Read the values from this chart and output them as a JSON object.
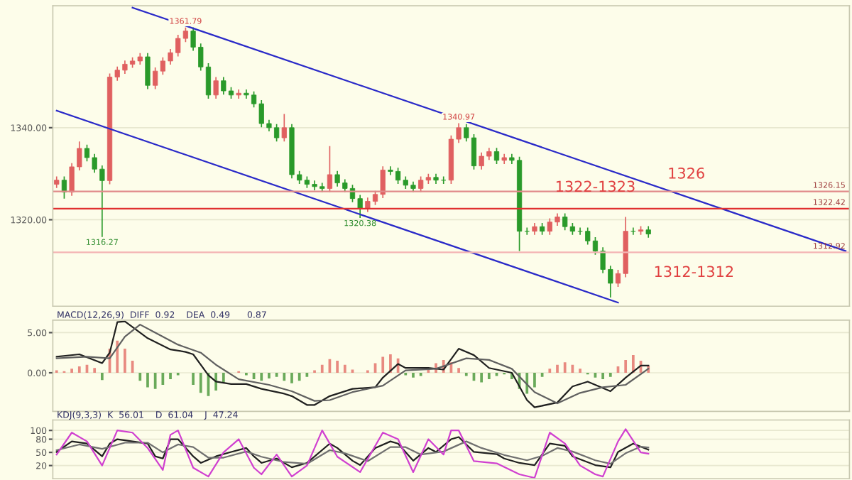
{
  "chart_data": [
    {
      "type": "candlestick",
      "categories": [
        null,
        null,
        null,
        null,
        null,
        null,
        null,
        null,
        null,
        null,
        null,
        null,
        null,
        null,
        null,
        null,
        null,
        null,
        null,
        null,
        null,
        null,
        null,
        null,
        null,
        null,
        null,
        null,
        null,
        null,
        null,
        null,
        null,
        null,
        null,
        null,
        null,
        null,
        null,
        null,
        null,
        null,
        null,
        null,
        null,
        null,
        null,
        null,
        null,
        null,
        null,
        null,
        null,
        null,
        null,
        null,
        null,
        null,
        null,
        null,
        null,
        null,
        null,
        null,
        null,
        null,
        null,
        null,
        null,
        null,
        null,
        null,
        null,
        null,
        null,
        null,
        null,
        null,
        null,
        null,
        null,
        null,
        null,
        null,
        null,
        null,
        null,
        null,
        null,
        null,
        null,
        null,
        null,
        null,
        null,
        null,
        null,
        null,
        null,
        null,
        null,
        null,
        null,
        null,
        null
      ],
      "ohlc": [
        [
          1327.7,
          1329.4,
          1326.9,
          1328.6
        ],
        [
          1328.6,
          1329.4,
          1324.6,
          1326.0
        ],
        [
          1326.0,
          1332.3,
          1325.2,
          1331.5
        ],
        [
          1331.5,
          1337.0,
          1330.7,
          1335.5
        ],
        [
          1335.5,
          1336.3,
          1332.7,
          1333.5
        ],
        [
          1333.5,
          1334.3,
          1330.2,
          1331.0
        ],
        [
          1331.0,
          1331.8,
          1316.27,
          1328.5
        ],
        [
          1328.5,
          1351.8,
          1327.7,
          1351.0
        ],
        [
          1351.0,
          1353.3,
          1350.2,
          1352.5
        ],
        [
          1352.5,
          1354.6,
          1351.7,
          1353.8
        ],
        [
          1353.8,
          1355.3,
          1353.0,
          1354.5
        ],
        [
          1354.5,
          1356.2,
          1353.7,
          1355.4
        ],
        [
          1355.4,
          1356.2,
          1348.4,
          1349.2
        ],
        [
          1349.2,
          1353.1,
          1348.4,
          1352.3
        ],
        [
          1352.3,
          1355.3,
          1351.5,
          1354.5
        ],
        [
          1354.5,
          1357.1,
          1353.7,
          1356.3
        ],
        [
          1356.3,
          1360.2,
          1355.5,
          1359.4
        ],
        [
          1359.4,
          1361.79,
          1358.6,
          1361.0
        ],
        [
          1361.0,
          1361.8,
          1356.7,
          1357.5
        ],
        [
          1357.5,
          1358.3,
          1352.4,
          1353.2
        ],
        [
          1353.2,
          1354.0,
          1346.3,
          1347.1
        ],
        [
          1347.1,
          1351.0,
          1346.3,
          1350.2
        ],
        [
          1350.2,
          1351.0,
          1347.2,
          1348.0
        ],
        [
          1348.0,
          1348.8,
          1346.3,
          1347.1
        ],
        [
          1347.1,
          1348.3,
          1346.3,
          1347.5
        ],
        [
          1347.5,
          1348.3,
          1346.3,
          1347.1
        ],
        [
          1347.1,
          1347.9,
          1344.4,
          1345.2
        ],
        [
          1345.2,
          1346.0,
          1340.1,
          1340.9
        ],
        [
          1340.9,
          1341.7,
          1339.2,
          1340.0
        ],
        [
          1340.0,
          1340.8,
          1337.0,
          1337.8
        ],
        [
          1337.8,
          1343.0,
          1337.0,
          1340.0
        ],
        [
          1340.0,
          1340.8,
          1329.0,
          1329.8
        ],
        [
          1329.8,
          1330.6,
          1327.8,
          1328.6
        ],
        [
          1328.6,
          1329.4,
          1326.9,
          1327.7
        ],
        [
          1327.7,
          1328.5,
          1326.4,
          1327.2
        ],
        [
          1327.2,
          1328.0,
          1326.0,
          1326.8
        ],
        [
          1326.8,
          1336.0,
          1326.0,
          1329.8
        ],
        [
          1329.8,
          1330.6,
          1327.2,
          1328.0
        ],
        [
          1328.0,
          1328.8,
          1326.0,
          1326.8
        ],
        [
          1326.8,
          1327.6,
          1323.8,
          1324.6
        ],
        [
          1324.6,
          1325.4,
          1320.38,
          1322.5
        ],
        [
          1322.5,
          1324.8,
          1321.7,
          1324.0
        ],
        [
          1324.0,
          1326.3,
          1323.2,
          1325.5
        ],
        [
          1325.5,
          1331.6,
          1324.7,
          1330.8
        ],
        [
          1330.8,
          1331.6,
          1329.7,
          1330.5
        ],
        [
          1330.5,
          1331.3,
          1327.8,
          1328.6
        ],
        [
          1328.6,
          1329.4,
          1326.7,
          1327.5
        ],
        [
          1327.5,
          1328.3,
          1326.0,
          1326.8
        ],
        [
          1326.8,
          1329.4,
          1326.0,
          1328.6
        ],
        [
          1328.6,
          1330.0,
          1327.8,
          1329.2
        ],
        [
          1329.2,
          1330.0,
          1327.8,
          1328.6
        ],
        [
          1328.6,
          1329.4,
          1327.8,
          1328.6
        ],
        [
          1328.6,
          1338.3,
          1327.8,
          1337.5
        ],
        [
          1337.5,
          1340.97,
          1336.7,
          1340.0
        ],
        [
          1340.0,
          1340.8,
          1337.0,
          1337.8
        ],
        [
          1337.8,
          1338.6,
          1330.9,
          1331.7
        ],
        [
          1331.7,
          1334.6,
          1330.9,
          1333.8
        ],
        [
          1333.8,
          1335.6,
          1333.0,
          1334.8
        ],
        [
          1334.8,
          1335.6,
          1332.1,
          1332.9
        ],
        [
          1332.9,
          1334.3,
          1332.1,
          1333.5
        ],
        [
          1333.5,
          1334.3,
          1332.1,
          1332.9
        ],
        [
          1332.9,
          1333.7,
          1313.2,
          1317.5
        ],
        [
          1317.5,
          1318.3,
          1316.7,
          1317.5
        ],
        [
          1317.5,
          1319.3,
          1316.7,
          1318.5
        ],
        [
          1318.5,
          1319.3,
          1316.7,
          1317.5
        ],
        [
          1317.5,
          1320.3,
          1316.7,
          1319.5
        ],
        [
          1319.5,
          1321.4,
          1318.7,
          1320.6
        ],
        [
          1320.6,
          1321.4,
          1317.7,
          1318.5
        ],
        [
          1318.5,
          1319.3,
          1316.7,
          1317.5
        ],
        [
          1317.5,
          1318.3,
          1316.7,
          1317.5
        ],
        [
          1317.5,
          1318.3,
          1314.6,
          1315.4
        ],
        [
          1315.4,
          1316.2,
          1312.4,
          1313.2
        ],
        [
          1313.2,
          1314.0,
          1308.4,
          1309.2
        ],
        [
          1309.2,
          1310.0,
          1303.1,
          1306.2
        ],
        [
          1306.2,
          1309.1,
          1305.4,
          1308.3
        ],
        [
          1308.3,
          1320.6,
          1307.5,
          1317.5
        ],
        [
          1317.5,
          1318.3,
          1316.7,
          1317.5
        ],
        [
          1317.5,
          1318.6,
          1316.7,
          1317.8
        ],
        [
          1317.8,
          1318.6,
          1316.1,
          1316.9
        ],
        null,
        null,
        null,
        null,
        null,
        null,
        null,
        null,
        null,
        null,
        null,
        null,
        null,
        null,
        null,
        null,
        null,
        null,
        null,
        null,
        null,
        null,
        null,
        null,
        null,
        null
      ],
      "colors": [
        "#e06060",
        "#2a9a2a",
        "#e06060",
        "#e06060",
        "#2a9a2a",
        "#2a9a2a",
        "#2a9a2a",
        "#e06060",
        "#e06060",
        "#e06060",
        "#e06060",
        "#e06060",
        "#2a9a2a",
        "#e06060",
        "#e06060",
        "#e06060",
        "#e06060",
        "#e06060",
        "#2a9a2a",
        "#2a9a2a",
        "#2a9a2a",
        "#e06060",
        "#2a9a2a",
        "#2a9a2a",
        "#e06060",
        "#2a9a2a",
        "#2a9a2a",
        "#2a9a2a",
        "#2a9a2a",
        "#2a9a2a",
        "#e06060",
        "#2a9a2a",
        "#2a9a2a",
        "#2a9a2a",
        "#2a9a2a",
        "#2a9a2a",
        "#e06060",
        "#2a9a2a",
        "#2a9a2a",
        "#2a9a2a",
        "#2a9a2a",
        "#e06060",
        "#e06060",
        "#e06060",
        "#2a9a2a",
        "#2a9a2a",
        "#2a9a2a",
        "#2a9a2a",
        "#e06060",
        "#e06060",
        "#2a9a2a",
        "#2a9a2a",
        "#e06060",
        "#e06060",
        "#2a9a2a",
        "#2a9a2a",
        "#e06060",
        "#e06060",
        "#2a9a2a",
        "#e06060",
        "#2a9a2a",
        "#2a9a2a",
        "#2a9a2a",
        "#e06060",
        "#2a9a2a",
        "#e06060",
        "#e06060",
        "#2a9a2a",
        "#2a9a2a",
        "#2a9a2a",
        "#2a9a2a",
        "#2a9a2a",
        "#2a9a2a",
        "#2a9a2a",
        "#e06060",
        "#e06060",
        "#2a9a2a",
        "#e06060",
        "#2a9a2a",
        null,
        null,
        null,
        null,
        null,
        null,
        null,
        null,
        null,
        null,
        null,
        null,
        null,
        null,
        null,
        null,
        null,
        null,
        null,
        null,
        null,
        null,
        null,
        null,
        null,
        null
      ],
      "series": [
        {
          "type": "line",
          "color": "#2a2ac8",
          "values": [
            null,
            null,
            null,
            null,
            null,
            null,
            null,
            null,
            null,
            null,
            1366.1,
            null,
            null,
            null,
            null,
            null,
            null,
            null,
            null,
            null,
            null,
            null,
            null,
            null,
            null,
            null,
            null,
            null,
            null,
            null,
            null,
            null,
            null,
            null,
            null,
            null,
            null,
            null,
            null,
            null,
            null,
            null,
            null,
            null,
            null,
            null,
            null,
            null,
            null,
            null,
            null,
            null,
            null,
            null,
            null,
            null,
            null,
            null,
            null,
            null,
            null,
            null,
            null,
            null,
            null,
            null,
            null,
            null,
            null,
            null,
            null,
            null,
            null,
            null,
            null,
            null,
            null,
            null,
            null,
            null,
            null,
            null,
            null,
            null,
            null,
            null,
            null,
            null,
            null,
            null,
            null,
            null,
            null,
            null,
            null,
            null,
            null,
            null,
            null,
            null,
            null,
            null,
            null,
            null,
            1313.2
          ]
        },
        {
          "type": "line",
          "color": "#2a2ac8",
          "values": [
            1343.7,
            null,
            null,
            null,
            null,
            null,
            null,
            null,
            null,
            null,
            null,
            null,
            null,
            null,
            null,
            null,
            null,
            null,
            null,
            null,
            null,
            null,
            null,
            null,
            null,
            null,
            null,
            null,
            null,
            null,
            null,
            null,
            null,
            null,
            null,
            null,
            null,
            null,
            null,
            null,
            null,
            null,
            null,
            null,
            null,
            null,
            null,
            null,
            null,
            null,
            null,
            null,
            null,
            null,
            null,
            null,
            null,
            null,
            null,
            null,
            null,
            null,
            null,
            null,
            null,
            null,
            null,
            null,
            null,
            null,
            null,
            null,
            null,
            null,
            1302.0,
            null,
            null,
            null,
            null,
            null,
            null,
            null,
            null,
            null,
            null,
            null,
            null,
            null,
            null,
            null,
            null,
            null,
            null,
            null,
            null,
            null,
            null,
            null,
            null,
            null,
            null,
            null,
            null,
            null,
            null
          ]
        }
      ],
      "ylim": [
        1301.2,
        1366.5
      ],
      "yticks": [
        {
          "value": 1320,
          "label": "1320.00"
        },
        {
          "value": 1340,
          "label": "1340.00"
        }
      ],
      "grid": "y",
      "tick_labels": "y",
      "ref_lines": [
        {
          "axis": "y",
          "value": 1326.15,
          "label": "1326.15",
          "color": "#e08a8a"
        },
        {
          "axis": "y",
          "value": 1322.42,
          "label": "1322.42",
          "color": "#e03030"
        },
        {
          "axis": "y",
          "value": 1312.92,
          "label": "1312.92",
          "color": "#f4b4b4"
        }
      ],
      "annotations": [
        {
          "text": "1361.79",
          "y": 1361.79
        },
        {
          "text": "1316.27",
          "y": 1316.27
        },
        {
          "text": "1320.38",
          "y": 1320.38
        },
        {
          "text": "1340.97",
          "y": 1340.97
        },
        {
          "text": "1326",
          "y": 1326.15
        },
        {
          "text": "1322-1323",
          "y": 1322.42
        },
        {
          "text": "1312-1312",
          "y": 1312.92
        }
      ]
    },
    {
      "type": "bar",
      "title": "MACD(12,26,9)  DIFF  0.92    DEA  0.49      0.87",
      "categories": [
        null,
        null,
        null,
        null,
        null,
        null,
        null,
        null,
        null,
        null,
        null,
        null,
        null,
        null,
        null,
        null,
        null,
        null,
        null,
        null,
        null,
        null,
        null,
        null,
        null,
        null,
        null,
        null,
        null,
        null,
        null,
        null,
        null,
        null,
        null,
        null,
        null,
        null,
        null,
        null,
        null,
        null,
        null,
        null,
        null,
        null,
        null,
        null,
        null,
        null,
        null,
        null,
        null,
        null,
        null,
        null,
        null,
        null,
        null,
        null,
        null,
        null,
        null,
        null,
        null,
        null,
        null,
        null,
        null,
        null,
        null,
        null,
        null,
        null,
        null,
        null,
        null,
        null,
        null,
        null,
        null,
        null,
        null,
        null,
        null,
        null,
        null,
        null,
        null,
        null,
        null,
        null,
        null,
        null,
        null,
        null,
        null,
        null,
        null,
        null,
        null,
        null,
        null,
        null,
        null
      ],
      "values": [
        0.3,
        0.2,
        0.5,
        0.8,
        1.0,
        0.6,
        -0.9,
        3.0,
        4.0,
        3.0,
        1.5,
        -1.0,
        -1.8,
        -2.0,
        -1.5,
        -0.8,
        -0.3,
        null,
        -1.5,
        -2.5,
        -2.9,
        -2.2,
        -1.2,
        null,
        0.2,
        -0.3,
        -0.8,
        -1.0,
        -0.7,
        -0.5,
        -1.0,
        -1.3,
        -1.0,
        -0.5,
        0.3,
        1.0,
        1.7,
        1.5,
        1.0,
        0.4,
        null,
        0.3,
        1.2,
        2.0,
        2.3,
        1.8,
        -0.3,
        -0.6,
        -0.4,
        0.5,
        1.2,
        1.6,
        1.3,
        0.6,
        -0.4,
        -1.0,
        -1.2,
        -0.8,
        -0.4,
        -0.2,
        -0.8,
        -2.0,
        -2.6,
        -1.8,
        -0.5,
        0.5,
        1.0,
        1.3,
        1.0,
        0.5,
        -0.2,
        -0.6,
        -0.8,
        -0.5,
        0.8,
        1.6,
        2.2,
        1.5,
        0.9,
        null,
        null,
        null,
        null,
        null,
        null,
        null,
        null,
        null,
        null,
        null,
        null,
        null,
        null,
        null,
        null,
        null,
        null,
        null,
        null,
        null,
        null,
        null,
        null,
        null,
        null
      ],
      "colors": [
        "#e88a80",
        "#e88a80",
        "#e88a80",
        "#e88a80",
        "#e88a80",
        "#e88a80",
        "#6aaa5a",
        "#e88a80",
        "#e88a80",
        "#e88a80",
        "#e88a80",
        "#6aaa5a",
        "#6aaa5a",
        "#6aaa5a",
        "#6aaa5a",
        "#6aaa5a",
        "#6aaa5a",
        "#e88a80",
        "#6aaa5a",
        "#6aaa5a",
        "#6aaa5a",
        "#6aaa5a",
        "#6aaa5a",
        "#6aaa5a",
        "#e88a80",
        "#6aaa5a",
        "#6aaa5a",
        "#6aaa5a",
        "#6aaa5a",
        "#6aaa5a",
        "#6aaa5a",
        "#6aaa5a",
        "#6aaa5a",
        "#6aaa5a",
        "#e88a80",
        "#e88a80",
        "#e88a80",
        "#e88a80",
        "#e88a80",
        "#e88a80",
        "#e88a80",
        "#e88a80",
        "#e88a80",
        "#e88a80",
        "#e88a80",
        "#e88a80",
        "#6aaa5a",
        "#6aaa5a",
        "#6aaa5a",
        "#e88a80",
        "#e88a80",
        "#e88a80",
        "#e88a80",
        "#e88a80",
        "#6aaa5a",
        "#6aaa5a",
        "#6aaa5a",
        "#6aaa5a",
        "#6aaa5a",
        "#6aaa5a",
        "#6aaa5a",
        "#6aaa5a",
        "#6aaa5a",
        "#6aaa5a",
        "#6aaa5a",
        "#e88a80",
        "#e88a80",
        "#e88a80",
        "#e88a80",
        "#e88a80",
        "#6aaa5a",
        "#6aaa5a",
        "#6aaa5a",
        "#6aaa5a",
        "#e88a80",
        "#e88a80",
        "#e88a80",
        "#e88a80",
        "#e88a80",
        null,
        null,
        null,
        null,
        null,
        null,
        null,
        null,
        null,
        null,
        null,
        null,
        null,
        null,
        null,
        null,
        null,
        null,
        null,
        null,
        null,
        null,
        null,
        null,
        null,
        null
      ],
      "series": [
        {
          "type": "line",
          "color": "#202020",
          "values": [
            2.0,
            null,
            null,
            2.3,
            null,
            null,
            1.2,
            2.5,
            6.3,
            6.4,
            null,
            null,
            4.3,
            null,
            null,
            2.9,
            null,
            2.6,
            2.3,
            null,
            -0.3,
            -1.1,
            null,
            -1.4,
            null,
            -1.4,
            null,
            -2.0,
            null,
            null,
            -2.6,
            -2.9,
            null,
            -4.0,
            -4.0,
            null,
            -2.9,
            null,
            null,
            -2.0,
            null,
            null,
            -1.8,
            -0.6,
            null,
            1.1,
            0.6,
            null,
            null,
            0.6,
            null,
            0.4,
            null,
            3.0,
            null,
            2.2,
            null,
            0.6,
            null,
            null,
            0,
            null,
            -3.4,
            -4.3,
            null,
            null,
            -3.7,
            null,
            -1.7,
            null,
            -1.1,
            null,
            null,
            -2.3,
            null,
            -0.6,
            null,
            0.9,
            0.9,
            null,
            null,
            null,
            null,
            null,
            null,
            null,
            null,
            null,
            null,
            null,
            null,
            null,
            null,
            null,
            null,
            null,
            null,
            null,
            null,
            null,
            null,
            null,
            null,
            null,
            null
          ]
        },
        {
          "type": "line",
          "color": "#606060",
          "values": [
            1.8,
            null,
            null,
            null,
            2.0,
            null,
            null,
            1.8,
            null,
            4.5,
            null,
            6.0,
            null,
            5.0,
            null,
            null,
            3.5,
            null,
            null,
            2.5,
            null,
            1.0,
            null,
            null,
            -0.8,
            null,
            null,
            null,
            -1.5,
            null,
            null,
            -2.3,
            null,
            null,
            -3.5,
            null,
            -3.4,
            null,
            null,
            -2.4,
            null,
            null,
            null,
            -1.6,
            null,
            null,
            0.3,
            null,
            null,
            null,
            0.5,
            null,
            null,
            null,
            1.8,
            null,
            null,
            1.6,
            null,
            null,
            0.5,
            null,
            null,
            -2.4,
            null,
            null,
            -3.8,
            null,
            null,
            -2.5,
            null,
            null,
            -1.8,
            null,
            null,
            -1.5,
            null,
            null,
            0.5,
            null,
            null,
            null,
            null,
            null,
            null,
            null,
            null,
            null,
            null,
            null,
            null,
            null,
            null,
            null,
            null,
            null,
            null,
            null,
            null,
            null,
            null,
            null,
            null,
            null,
            null
          ]
        }
      ],
      "ylim": [
        -4.8,
        6.55
      ],
      "yticks": [
        {
          "value": 0,
          "label": "0.00"
        },
        {
          "value": 5,
          "label": "5.00"
        }
      ],
      "grid": "y",
      "tick_labels": "y"
    },
    {
      "type": "line",
      "title": "KDJ(9,3,3)  K  56.01    D  61.04    J  47.24",
      "categories": [
        null,
        null,
        null,
        null,
        null,
        null,
        null,
        null,
        null,
        null,
        null,
        null,
        null,
        null,
        null,
        null,
        null,
        null,
        null,
        null,
        null,
        null,
        null,
        null,
        null,
        null,
        null,
        null,
        null,
        null,
        null,
        null,
        null,
        null,
        null,
        null,
        null,
        null,
        null,
        null,
        null,
        null,
        null,
        null,
        null,
        null,
        null,
        null,
        null,
        null,
        null,
        null,
        null,
        null,
        null,
        null,
        null,
        null,
        null,
        null,
        null,
        null,
        null,
        null,
        null,
        null,
        null,
        null,
        null,
        null,
        null,
        null,
        null,
        null,
        null,
        null,
        null,
        null,
        null,
        null,
        null,
        null,
        null,
        null,
        null,
        null,
        null,
        null,
        null,
        null,
        null,
        null,
        null,
        null,
        null,
        null,
        null,
        null,
        null,
        null,
        null,
        null,
        null,
        null,
        null
      ],
      "series": [
        {
          "color": "#202020",
          "values": [
            51,
            null,
            75,
            null,
            70,
            null,
            41,
            70,
            80,
            null,
            null,
            null,
            70,
            41,
            36,
            80,
            80,
            null,
            41,
            26,
            null,
            41,
            null,
            51,
            null,
            60,
            41,
            26,
            null,
            36,
            null,
            16,
            null,
            26,
            null,
            null,
            70,
            60,
            null,
            31,
            21,
            null,
            60,
            null,
            75,
            70,
            null,
            31,
            null,
            60,
            51,
            null,
            80,
            85,
            null,
            51,
            null,
            null,
            46,
            36,
            null,
            26,
            null,
            21,
            null,
            70,
            null,
            65,
            41,
            null,
            null,
            21,
            null,
            16,
            51,
            null,
            70,
            null,
            56,
            null,
            null,
            null,
            null,
            null,
            null,
            null,
            null,
            null,
            null,
            null,
            null,
            null,
            null,
            null,
            null,
            null,
            null,
            null,
            null,
            null,
            null,
            null,
            null,
            null,
            null
          ]
        },
        {
          "color": "#707070",
          "values": [
            55,
            null,
            null,
            68,
            null,
            null,
            58,
            null,
            null,
            72,
            null,
            null,
            72,
            null,
            50,
            null,
            68,
            null,
            62,
            null,
            38,
            null,
            38,
            null,
            null,
            52,
            null,
            40,
            null,
            null,
            28,
            null,
            null,
            24,
            null,
            null,
            55,
            null,
            48,
            null,
            null,
            30,
            null,
            null,
            62,
            null,
            62,
            null,
            45,
            null,
            null,
            52,
            null,
            null,
            75,
            null,
            60,
            null,
            null,
            44,
            null,
            null,
            32,
            null,
            42,
            null,
            60,
            null,
            52,
            null,
            null,
            32,
            null,
            24,
            null,
            48,
            null,
            63,
            61,
            null,
            null,
            null,
            null,
            null,
            null,
            null,
            null,
            null,
            null,
            null,
            null,
            null,
            null,
            null,
            null,
            null,
            null,
            null,
            null,
            null,
            null,
            null,
            null,
            null,
            null
          ]
        },
        {
          "color": "#d040d0",
          "values": [
            45,
            null,
            95,
            null,
            75,
            null,
            20,
            null,
            100,
            null,
            95,
            null,
            60,
            null,
            10,
            90,
            100,
            null,
            15,
            null,
            -5,
            null,
            50,
            null,
            80,
            null,
            15,
            0,
            null,
            45,
            null,
            -5,
            null,
            20,
            null,
            100,
            null,
            40,
            null,
            null,
            5,
            null,
            null,
            95,
            null,
            80,
            null,
            5,
            null,
            80,
            null,
            45,
            100,
            100,
            null,
            30,
            null,
            null,
            25,
            null,
            null,
            0,
            null,
            -8,
            null,
            95,
            null,
            70,
            null,
            20,
            null,
            0,
            -5,
            null,
            75,
            103,
            null,
            50,
            47,
            null,
            null,
            null,
            null,
            null,
            null,
            null,
            null,
            null,
            null,
            null,
            null,
            null,
            null,
            null,
            null,
            null,
            null,
            null,
            null,
            null,
            null,
            null,
            null,
            null,
            null
          ]
        }
      ],
      "ylim": [
        -9.6,
        123.7
      ],
      "yticks": [
        20,
        50,
        80,
        100
      ],
      "grid": "y",
      "tick_labels": "y"
    }
  ]
}
